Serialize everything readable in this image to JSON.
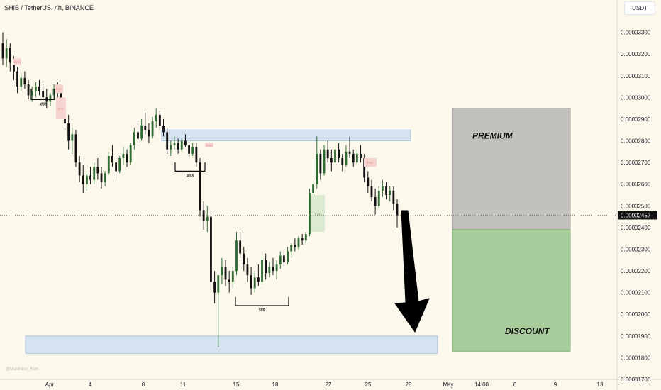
{
  "header": {
    "title": "SHIB / TetherUS, 4h, BINANCE",
    "currency": "USDT"
  },
  "watermark": "@Mastrano_Sam",
  "colors": {
    "up": "#2f6b33",
    "down": "#111111",
    "background": "#fdf8ec",
    "blue_zone": "#d5e2f0",
    "premium": "#c2c1bd",
    "discount": "#a8cc9b",
    "fvg_red": "#f7d3d0",
    "fvg_green": "#dceacf"
  },
  "chart_data": {
    "type": "candlestick",
    "symbol": "SHIB / TetherUS",
    "timeframe": "4h",
    "exchange": "BINANCE",
    "current_price": "0.00002457",
    "ylim": [
      1.7e-05,
      3.4e-05
    ],
    "y_ticks": [
      "0.00003300",
      "0.00003200",
      "0.00003100",
      "0.00003000",
      "0.00002900",
      "0.00002800",
      "0.00002700",
      "0.00002600",
      "0.00002500",
      "0.00002400",
      "0.00002300",
      "0.00002200",
      "0.00002100",
      "0.00002000",
      "0.00001900",
      "0.00001800",
      "0.00001700"
    ],
    "x_ticks": [
      "Apr",
      "4",
      "8",
      "11",
      "15",
      "18",
      "22",
      "25",
      "28",
      "May",
      "14:00",
      "6",
      "9",
      "13"
    ],
    "candles": [
      [
        3.25e-05,
        3.3e-05,
        3.15e-05,
        3.18e-05
      ],
      [
        3.18e-05,
        3.27e-05,
        3.14e-05,
        3.23e-05
      ],
      [
        3.23e-05,
        3.25e-05,
        3.12e-05,
        3.16e-05
      ],
      [
        3.16e-05,
        3.19e-05,
        3.08e-05,
        3.12e-05
      ],
      [
        3.12e-05,
        3.14e-05,
        3.02e-05,
        3.05e-05
      ],
      [
        3.05e-05,
        3.11e-05,
        3.03e-05,
        3.09e-05
      ],
      [
        3.09e-05,
        3.12e-05,
        3.04e-05,
        3.06e-05
      ],
      [
        3.06e-05,
        3.08e-05,
        2.99e-05,
        3.01e-05
      ],
      [
        3.01e-05,
        3.05e-05,
        2.98e-05,
        3.03e-05
      ],
      [
        3.03e-05,
        3.07e-05,
        3e-05,
        3.05e-05
      ],
      [
        3.05e-05,
        3.08e-05,
        3.01e-05,
        3.03e-05
      ],
      [
        3.03e-05,
        3.06e-05,
        2.98e-05,
        3e-05
      ],
      [
        3e-05,
        3.04e-05,
        2.95e-05,
        2.98e-05
      ],
      [
        2.98e-05,
        3.02e-05,
        2.96e-05,
        3.01e-05
      ],
      [
        3.01e-05,
        3.06e-05,
        2.99e-05,
        3.04e-05
      ],
      [
        3.04e-05,
        3.07e-05,
        3e-05,
        3.02e-05
      ],
      [
        3.02e-05,
        3.04e-05,
        2.94e-05,
        2.96e-05
      ],
      [
        2.96e-05,
        2.99e-05,
        2.85e-05,
        2.88e-05
      ],
      [
        2.88e-05,
        2.92e-05,
        2.76e-05,
        2.8e-05
      ],
      [
        2.8e-05,
        2.86e-05,
        2.74e-05,
        2.83e-05
      ],
      [
        2.83e-05,
        2.85e-05,
        2.68e-05,
        2.7e-05
      ],
      [
        2.7e-05,
        2.73e-05,
        2.61e-05,
        2.64e-05
      ],
      [
        2.64e-05,
        2.69e-05,
        2.56e-05,
        2.6e-05
      ],
      [
        2.6e-05,
        2.66e-05,
        2.57e-05,
        2.64e-05
      ],
      [
        2.64e-05,
        2.68e-05,
        2.6e-05,
        2.62e-05
      ],
      [
        2.62e-05,
        2.7e-05,
        2.6e-05,
        2.68e-05
      ],
      [
        2.68e-05,
        2.72e-05,
        2.62e-05,
        2.65e-05
      ],
      [
        2.65e-05,
        2.68e-05,
        2.58e-05,
        2.61e-05
      ],
      [
        2.61e-05,
        2.66e-05,
        2.59e-05,
        2.65e-05
      ],
      [
        2.65e-05,
        2.75e-05,
        2.64e-05,
        2.73e-05
      ],
      [
        2.73e-05,
        2.78e-05,
        2.68e-05,
        2.7e-05
      ],
      [
        2.7e-05,
        2.72e-05,
        2.63e-05,
        2.66e-05
      ],
      [
        2.66e-05,
        2.73e-05,
        2.65e-05,
        2.72e-05
      ],
      [
        2.72e-05,
        2.77e-05,
        2.69e-05,
        2.74e-05
      ],
      [
        2.74e-05,
        2.76e-05,
        2.68e-05,
        2.7e-05
      ],
      [
        2.7e-05,
        2.79e-05,
        2.69e-05,
        2.78e-05
      ],
      [
        2.78e-05,
        2.86e-05,
        2.76e-05,
        2.84e-05
      ],
      [
        2.84e-05,
        2.88e-05,
        2.79e-05,
        2.81e-05
      ],
      [
        2.81e-05,
        2.9e-05,
        2.8e-05,
        2.87e-05
      ],
      [
        2.87e-05,
        2.93e-05,
        2.83e-05,
        2.85e-05
      ],
      [
        2.85e-05,
        2.88e-05,
        2.79e-05,
        2.82e-05
      ],
      [
        2.82e-05,
        2.91e-05,
        2.81e-05,
        2.89e-05
      ],
      [
        2.89e-05,
        2.95e-05,
        2.86e-05,
        2.92e-05
      ],
      [
        2.92e-05,
        2.94e-05,
        2.85e-05,
        2.87e-05
      ],
      [
        2.87e-05,
        2.9e-05,
        2.82e-05,
        2.84e-05
      ],
      [
        2.84e-05,
        2.86e-05,
        2.74e-05,
        2.76e-05
      ],
      [
        2.76e-05,
        2.8e-05,
        2.73e-05,
        2.78e-05
      ],
      [
        2.78e-05,
        2.82e-05,
        2.76e-05,
        2.79e-05
      ],
      [
        2.79e-05,
        2.81e-05,
        2.74e-05,
        2.76e-05
      ],
      [
        2.76e-05,
        2.81e-05,
        2.75e-05,
        2.8e-05
      ],
      [
        2.8e-05,
        2.83e-05,
        2.77e-05,
        2.78e-05
      ],
      [
        2.78e-05,
        2.8e-05,
        2.72e-05,
        2.74e-05
      ],
      [
        2.74e-05,
        2.79e-05,
        2.73e-05,
        2.77e-05
      ],
      [
        2.77e-05,
        2.79e-05,
        2.68e-05,
        2.7e-05
      ],
      [
        2.7e-05,
        2.72e-05,
        2.45e-05,
        2.48e-05
      ],
      [
        2.48e-05,
        2.52e-05,
        2.39e-05,
        2.43e-05
      ],
      [
        2.43e-05,
        2.5e-05,
        2.38e-05,
        2.45e-05
      ],
      [
        2.45e-05,
        2.48e-05,
        2.11e-05,
        2.15e-05
      ],
      [
        2.15e-05,
        2.2e-05,
        2.05e-05,
        2.1e-05
      ],
      [
        2.1e-05,
        2.18e-05,
        1.85e-05,
        2.18e-05
      ],
      [
        2.18e-05,
        2.26e-05,
        2.14e-05,
        2.22e-05
      ],
      [
        2.22e-05,
        2.25e-05,
        2.13e-05,
        2.16e-05
      ],
      [
        2.16e-05,
        2.2e-05,
        2.1e-05,
        2.15e-05
      ],
      [
        2.15e-05,
        2.22e-05,
        2.12e-05,
        2.2e-05
      ],
      [
        2.2e-05,
        2.38e-05,
        2.18e-05,
        2.34e-05
      ],
      [
        2.34e-05,
        2.38e-05,
        2.26e-05,
        2.28e-05
      ],
      [
        2.28e-05,
        2.31e-05,
        2.2e-05,
        2.23e-05
      ],
      [
        2.23e-05,
        2.26e-05,
        2.15e-05,
        2.18e-05
      ],
      [
        2.18e-05,
        2.22e-05,
        2.09e-05,
        2.12e-05
      ],
      [
        2.12e-05,
        2.2e-05,
        2.1e-05,
        2.17e-05
      ],
      [
        2.17e-05,
        2.23e-05,
        2.13e-05,
        2.15e-05
      ],
      [
        2.15e-05,
        2.27e-05,
        2.14e-05,
        2.25e-05
      ],
      [
        2.25e-05,
        2.28e-05,
        2.16e-05,
        2.19e-05
      ],
      [
        2.19e-05,
        2.24e-05,
        2.17e-05,
        2.22e-05
      ],
      [
        2.22e-05,
        2.26e-05,
        2.18e-05,
        2.2e-05
      ],
      [
        2.2e-05,
        2.25e-05,
        2.16e-05,
        2.23e-05
      ],
      [
        2.23e-05,
        2.29e-05,
        2.21e-05,
        2.27e-05
      ],
      [
        2.27e-05,
        2.3e-05,
        2.22e-05,
        2.24e-05
      ],
      [
        2.24e-05,
        2.31e-05,
        2.23e-05,
        2.29e-05
      ],
      [
        2.29e-05,
        2.33e-05,
        2.26e-05,
        2.32e-05
      ],
      [
        2.32e-05,
        2.35e-05,
        2.29e-05,
        2.31e-05
      ],
      [
        2.31e-05,
        2.36e-05,
        2.3e-05,
        2.35e-05
      ],
      [
        2.35e-05,
        2.37e-05,
        2.32e-05,
        2.34e-05
      ],
      [
        2.34e-05,
        2.38e-05,
        2.33e-05,
        2.37e-05
      ],
      [
        2.37e-05,
        2.58e-05,
        2.36e-05,
        2.56e-05
      ],
      [
        2.56e-05,
        2.62e-05,
        2.54e-05,
        2.6e-05
      ],
      [
        2.6e-05,
        2.82e-05,
        2.58e-05,
        2.74e-05
      ],
      [
        2.74e-05,
        2.76e-05,
        2.62e-05,
        2.65e-05
      ],
      [
        2.65e-05,
        2.78e-05,
        2.64e-05,
        2.76e-05
      ],
      [
        2.76e-05,
        2.8e-05,
        2.7e-05,
        2.72e-05
      ],
      [
        2.72e-05,
        2.76e-05,
        2.66e-05,
        2.7e-05
      ],
      [
        2.7e-05,
        2.79e-05,
        2.69e-05,
        2.76e-05
      ],
      [
        2.76e-05,
        2.79e-05,
        2.7e-05,
        2.72e-05
      ],
      [
        2.72e-05,
        2.74e-05,
        2.66e-05,
        2.69e-05
      ],
      [
        2.69e-05,
        2.78e-05,
        2.68e-05,
        2.75e-05
      ],
      [
        2.75e-05,
        2.82e-05,
        2.72e-05,
        2.74e-05
      ],
      [
        2.74e-05,
        2.76e-05,
        2.68e-05,
        2.7e-05
      ],
      [
        2.7e-05,
        2.76e-05,
        2.69e-05,
        2.74e-05
      ],
      [
        2.74e-05,
        2.78e-05,
        2.7e-05,
        2.72e-05
      ],
      [
        2.72e-05,
        2.74e-05,
        2.61e-05,
        2.63e-05
      ],
      [
        2.63e-05,
        2.66e-05,
        2.56e-05,
        2.59e-05
      ],
      [
        2.59e-05,
        2.62e-05,
        2.52e-05,
        2.54e-05
      ],
      [
        2.54e-05,
        2.58e-05,
        2.46e-05,
        2.5e-05
      ],
      [
        2.5e-05,
        2.59e-05,
        2.49e-05,
        2.57e-05
      ],
      [
        2.57e-05,
        2.62e-05,
        2.54e-05,
        2.59e-05
      ],
      [
        2.59e-05,
        2.61e-05,
        2.53e-05,
        2.55e-05
      ],
      [
        2.55e-05,
        2.59e-05,
        2.52e-05,
        2.57e-05
      ],
      [
        2.57e-05,
        2.59e-05,
        2.48e-05,
        2.51e-05
      ],
      [
        2.51e-05,
        2.53e-05,
        2.4e-05,
        2.457e-05
      ]
    ],
    "zones": [
      {
        "type": "supply",
        "top": 2.85e-05,
        "bottom": 2.8e-05
      },
      {
        "type": "demand",
        "top": 1.9e-05,
        "bottom": 1.82e-05
      }
    ],
    "fvg_labels": [
      "FVG",
      "FVG",
      "FVG",
      "FVG",
      "FVG",
      "FVG"
    ],
    "range_box": {
      "top": 2.95e-05,
      "mid": 2.39e-05,
      "bottom": 1.83e-05,
      "premium_label": "PREMIUM",
      "discount_label": "DISCOUNT"
    },
    "annotations": [
      "MSS",
      "MSS",
      "$$$"
    ]
  }
}
